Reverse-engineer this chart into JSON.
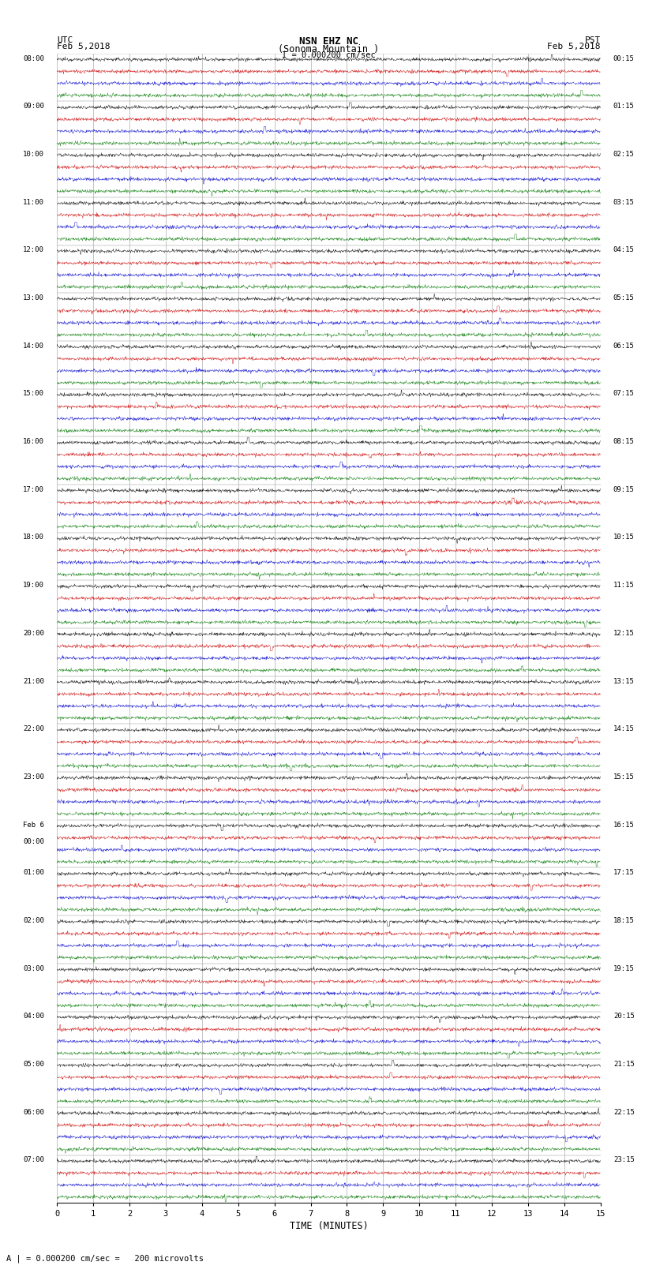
{
  "title_line1": "NSN EHZ NC",
  "title_line2": "(Sonoma Mountain )",
  "scale_label": "I = 0.000200 cm/sec",
  "left_header_line1": "UTC",
  "left_header_line2": "Feb 5,2018",
  "right_header_line1": "PST",
  "right_header_line2": "Feb 5,2018",
  "bottom_label": "TIME (MINUTES)",
  "bottom_note": "A | = 0.000200 cm/sec =   200 microvolts",
  "colors": [
    "#000000",
    "#cc0000",
    "#0000cc",
    "#007700"
  ],
  "traces_per_row": 4,
  "fig_width": 8.5,
  "fig_height": 16.13,
  "bg_color": "#ffffff",
  "grid_color": "#999999",
  "left_tick_labels_utc": [
    "08:00",
    "09:00",
    "10:00",
    "11:00",
    "12:00",
    "13:00",
    "14:00",
    "15:00",
    "16:00",
    "17:00",
    "18:00",
    "19:00",
    "20:00",
    "21:00",
    "22:00",
    "23:00",
    "Feb 6\n00:00",
    "01:00",
    "02:00",
    "03:00",
    "04:00",
    "05:00",
    "06:00",
    "07:00"
  ],
  "right_tick_labels_pst": [
    "00:15",
    "01:15",
    "02:15",
    "03:15",
    "04:15",
    "05:15",
    "06:15",
    "07:15",
    "08:15",
    "09:15",
    "10:15",
    "11:15",
    "12:15",
    "13:15",
    "14:15",
    "15:15",
    "16:15",
    "17:15",
    "18:15",
    "19:15",
    "20:15",
    "21:15",
    "22:15",
    "23:15"
  ],
  "noise_amplitude": 0.018,
  "spike_probability": 0.0008,
  "spike_amplitude_min": 0.05,
  "spike_amplitude_max": 0.35,
  "num_hour_rows": 24,
  "minutes_per_row": 15
}
